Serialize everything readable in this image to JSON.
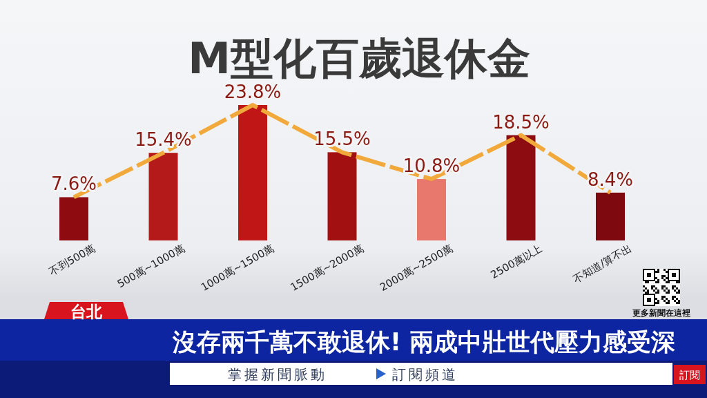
{
  "chart_data": {
    "type": "bar",
    "title": "M型化百歲退休金",
    "categories": [
      "不到500萬",
      "500萬~1000萬",
      "1000萬~1500萬",
      "1500萬~2000萬",
      "2000萬~2500萬",
      "2500萬以上",
      "不知道/算不出"
    ],
    "series": [
      {
        "values": [
          7.6,
          15.4,
          23.8,
          15.5,
          10.8,
          18.5,
          8.4
        ],
        "colors": [
          "#8e0c10",
          "#b51a1a",
          "#c01616",
          "#a31012",
          "#e8776d",
          "#8c0c12",
          "#7e0a10"
        ],
        "value_labels": [
          "7.6%",
          "15.4%",
          "23.8%",
          "15.5%",
          "10.8%",
          "18.5%",
          "8.4%"
        ]
      },
      {
        "type": "line",
        "values": [
          7.6,
          15.4,
          23.8,
          15.5,
          10.8,
          18.5,
          8.4
        ],
        "color": "#f2a93b",
        "line_style": "dashed"
      }
    ],
    "annotations": [
      "台北",
      "沒存兩千萬不敢退休! 兩成中壯世代壓力感受深",
      "掌握新聞脈動",
      "訂閱頻道",
      "更多新聞在這裡",
      "訂閱"
    ]
  }
}
